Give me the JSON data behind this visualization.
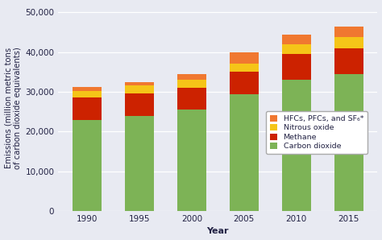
{
  "years": [
    "1990",
    "1995",
    "2000",
    "2005",
    "2010",
    "2015"
  ],
  "carbon_dioxide": [
    23000,
    24000,
    25500,
    29500,
    33000,
    34500
  ],
  "methane": [
    5500,
    5700,
    5500,
    5500,
    6500,
    6500
  ],
  "nitrous_oxide": [
    1800,
    1900,
    2000,
    2200,
    2500,
    2700
  ],
  "hfcs_pfcs_sf6": [
    900,
    900,
    1500,
    2800,
    2500,
    2800
  ],
  "colors": {
    "carbon_dioxide": "#7db356",
    "methane": "#cc2200",
    "nitrous_oxide": "#f5c518",
    "hfcs_pfcs_sf6": "#f07830"
  },
  "ylabel": "Emissions (million metric tons\nof carbon dioxide equivalents)",
  "xlabel": "Year",
  "ylim": [
    0,
    52000
  ],
  "yticks": [
    0,
    10000,
    20000,
    30000,
    40000,
    50000
  ],
  "ytick_labels": [
    "0",
    "10,000",
    "20,000",
    "30,000",
    "40,000",
    "50,000"
  ],
  "legend_labels": [
    "HFCs, PFCs, and SF₆*",
    "Nitrous oxide",
    "Methane",
    "Carbon dioxide"
  ],
  "legend_colors": [
    "#f07830",
    "#f5c518",
    "#cc2200",
    "#7db356"
  ],
  "bg_color": "#e8eaf2",
  "bar_width": 0.55,
  "label_fontsize": 8,
  "tick_fontsize": 7.5,
  "legend_fontsize": 6.8
}
